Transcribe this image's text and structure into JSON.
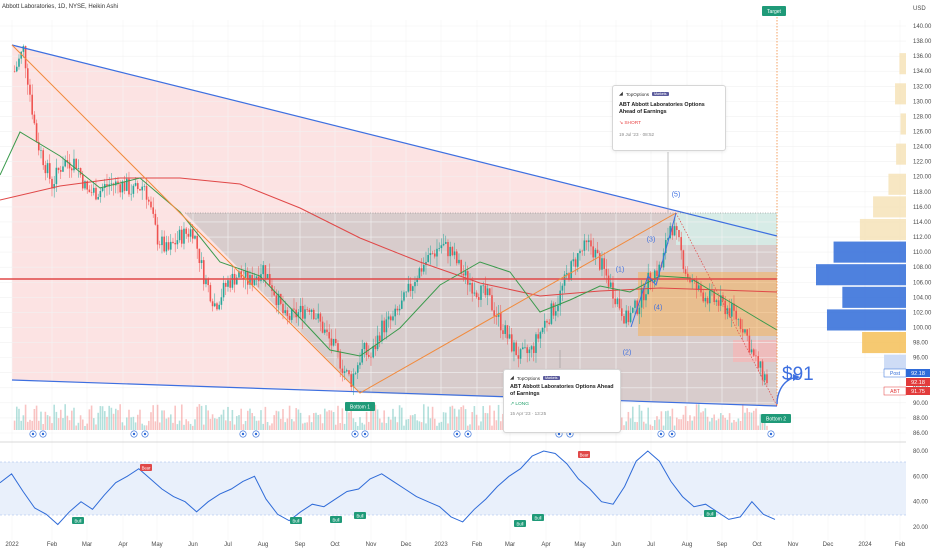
{
  "header": {
    "title": "Abbott Laboratories, 1D, NYSE, Heikin Ashi",
    "currency": "USD"
  },
  "chart_data": [
    {
      "type": "candlestick",
      "title": "Abbott Laboratories, 1D, NYSE, Heikin Ashi",
      "y_axis_ticks": [
        "140.00",
        "138.00",
        "136.00",
        "134.00",
        "132.00",
        "130.00",
        "128.00",
        "126.00",
        "124.00",
        "122.00",
        "120.00",
        "118.00",
        "116.00",
        "114.00",
        "112.00",
        "110.00",
        "108.00",
        "106.00",
        "104.00",
        "102.00",
        "100.00",
        "98.00",
        "96.00",
        "94.00",
        "92.00",
        "90.00",
        "88.00",
        "86.00"
      ],
      "x_axis_ticks": [
        "2022",
        "Feb",
        "Mar",
        "Apr",
        "May",
        "Jun",
        "Jul",
        "Aug",
        "Sep",
        "Oct",
        "Nov",
        "Dec",
        "2023",
        "Feb",
        "Mar",
        "Apr",
        "May",
        "Jun",
        "Jul",
        "Aug",
        "Sep",
        "Oct",
        "Nov",
        "Dec",
        "2024",
        "Feb"
      ],
      "ylim": [
        85,
        142
      ],
      "close_series": [
        {
          "date": "2022-01-03",
          "close": 134
        },
        {
          "date": "2022-01-10",
          "close": 137
        },
        {
          "date": "2022-01-20",
          "close": 125
        },
        {
          "date": "2022-02-01",
          "close": 119
        },
        {
          "date": "2022-02-10",
          "close": 122
        },
        {
          "date": "2022-02-20",
          "close": 122
        },
        {
          "date": "2022-03-01",
          "close": 118
        },
        {
          "date": "2022-03-10",
          "close": 118
        },
        {
          "date": "2022-03-20",
          "close": 119
        },
        {
          "date": "2022-04-01",
          "close": 119
        },
        {
          "date": "2022-04-10",
          "close": 118
        },
        {
          "date": "2022-04-20",
          "close": 119
        },
        {
          "date": "2022-05-01",
          "close": 112
        },
        {
          "date": "2022-05-10",
          "close": 110
        },
        {
          "date": "2022-05-20",
          "close": 112
        },
        {
          "date": "2022-06-01",
          "close": 113
        },
        {
          "date": "2022-06-10",
          "close": 107
        },
        {
          "date": "2022-06-20",
          "close": 103
        },
        {
          "date": "2022-07-01",
          "close": 106
        },
        {
          "date": "2022-07-10",
          "close": 107
        },
        {
          "date": "2022-07-20",
          "close": 106
        },
        {
          "date": "2022-08-01",
          "close": 108
        },
        {
          "date": "2022-08-10",
          "close": 105
        },
        {
          "date": "2022-08-20",
          "close": 101
        },
        {
          "date": "2022-09-01",
          "close": 102
        },
        {
          "date": "2022-09-10",
          "close": 103
        },
        {
          "date": "2022-09-20",
          "close": 100
        },
        {
          "date": "2022-10-01",
          "close": 97
        },
        {
          "date": "2022-10-10",
          "close": 94
        },
        {
          "date": "2022-10-15",
          "close": 93
        },
        {
          "date": "2022-10-25",
          "close": 97
        },
        {
          "date": "2022-11-01",
          "close": 96
        },
        {
          "date": "2022-11-10",
          "close": 100
        },
        {
          "date": "2022-11-20",
          "close": 101
        },
        {
          "date": "2022-12-01",
          "close": 104
        },
        {
          "date": "2022-12-10",
          "close": 107
        },
        {
          "date": "2022-12-20",
          "close": 109
        },
        {
          "date": "2023-01-01",
          "close": 111
        },
        {
          "date": "2023-01-10",
          "close": 110
        },
        {
          "date": "2023-01-20",
          "close": 107
        },
        {
          "date": "2023-02-01",
          "close": 105
        },
        {
          "date": "2023-02-10",
          "close": 104
        },
        {
          "date": "2023-02-20",
          "close": 101
        },
        {
          "date": "2023-03-01",
          "close": 98
        },
        {
          "date": "2023-03-10",
          "close": 96
        },
        {
          "date": "2023-03-20",
          "close": 97
        },
        {
          "date": "2023-04-01",
          "close": 101
        },
        {
          "date": "2023-04-10",
          "close": 103
        },
        {
          "date": "2023-04-20",
          "close": 107
        },
        {
          "date": "2023-05-01",
          "close": 110
        },
        {
          "date": "2023-05-10",
          "close": 111
        },
        {
          "date": "2023-05-20",
          "close": 108
        },
        {
          "date": "2023-06-01",
          "close": 104
        },
        {
          "date": "2023-06-10",
          "close": 101
        },
        {
          "date": "2023-06-20",
          "close": 103
        },
        {
          "date": "2023-07-01",
          "close": 107
        },
        {
          "date": "2023-07-10",
          "close": 108
        },
        {
          "date": "2023-07-18",
          "close": 114
        },
        {
          "date": "2023-07-25",
          "close": 111
        },
        {
          "date": "2023-08-01",
          "close": 107
        },
        {
          "date": "2023-08-10",
          "close": 105
        },
        {
          "date": "2023-08-20",
          "close": 104
        },
        {
          "date": "2023-09-01",
          "close": 103
        },
        {
          "date": "2023-09-10",
          "close": 102
        },
        {
          "date": "2023-09-20",
          "close": 100
        },
        {
          "date": "2023-09-28",
          "close": 96
        },
        {
          "date": "2023-10-05",
          "close": 94
        },
        {
          "date": "2023-10-10",
          "close": 93
        }
      ],
      "wave_labels": [
        {
          "label": "(1)",
          "value": 107
        },
        {
          "label": "(2)",
          "value": 96
        },
        {
          "label": "(3)",
          "value": 111
        },
        {
          "label": "(4)",
          "value": 102
        },
        {
          "label": "(5)",
          "value": 117
        }
      ],
      "annotations": {
        "target": "Target",
        "bottom_1": "Bottom 1",
        "bottom_2": "Bottom 2",
        "price_target_text": "$91"
      },
      "price_labels": [
        {
          "tag": "Post",
          "value": "92.18",
          "color": "#2f6bd8"
        },
        {
          "tag": "",
          "value": "92.18",
          "color": "#e23b3b"
        },
        {
          "tag": "ABT",
          "value": "91.75",
          "color": "#e23b3b"
        }
      ],
      "volume_profile": [
        {
          "price": 135,
          "volume": 6,
          "color": "#f6e3b9"
        },
        {
          "price": 131,
          "volume": 10,
          "color": "#f6e3b9"
        },
        {
          "price": 127,
          "volume": 5,
          "color": "#f6e3b9"
        },
        {
          "price": 123,
          "volume": 9,
          "color": "#f6e3b9"
        },
        {
          "price": 119,
          "volume": 16,
          "color": "#f6e3b9"
        },
        {
          "price": 116,
          "volume": 30,
          "color": "#f6e3b9"
        },
        {
          "price": 113,
          "volume": 42,
          "color": "#f6e3b9"
        },
        {
          "price": 110,
          "volume": 66,
          "color": "#2f6bd8"
        },
        {
          "price": 107,
          "volume": 82,
          "color": "#2f6bd8"
        },
        {
          "price": 104,
          "volume": 58,
          "color": "#2f6bd8"
        },
        {
          "price": 101,
          "volume": 72,
          "color": "#2f6bd8"
        },
        {
          "price": 98,
          "volume": 40,
          "color": "#f5c058"
        },
        {
          "price": 95,
          "volume": 20,
          "color": "#c6d6f5"
        }
      ]
    },
    {
      "type": "line",
      "name": "oscillator",
      "y_axis_ticks": [
        "80.00",
        "60.00",
        "40.00",
        "20.00"
      ],
      "ylim": [
        15,
        85
      ],
      "values": [
        55,
        62,
        48,
        35,
        30,
        22,
        32,
        40,
        34,
        45,
        55,
        60,
        66,
        58,
        50,
        44,
        40,
        32,
        40,
        46,
        50,
        56,
        60,
        42,
        30,
        25,
        32,
        38,
        36,
        42,
        48,
        50,
        58,
        62,
        56,
        50,
        44,
        40,
        36,
        28,
        24,
        34,
        42,
        52,
        60,
        66,
        76,
        80,
        78,
        70,
        58,
        50,
        40,
        38,
        52,
        72,
        80,
        72,
        56,
        44,
        36,
        38,
        32,
        26,
        28,
        40,
        30,
        26
      ],
      "signals": [
        "Bull",
        "Bear",
        "Bull",
        "Bull",
        "Bull",
        "Bull",
        "Bull",
        "Bear",
        "Bull"
      ]
    }
  ],
  "cards": [
    {
      "brand": "TopOptions",
      "badge": "Markets",
      "headline": "ABT Abbott Laboratories Options Ahead of Earnings",
      "direction": "↘ SHORT",
      "direction_color": "#e84545",
      "date": "19 Jul '23 · 08:52"
    },
    {
      "brand": "TopOptions",
      "badge": "Markets",
      "headline": "ABT Abbott Laboratories Options Ahead of Earnings",
      "direction": "↗ LONG",
      "direction_color": "#22a06b",
      "date": "15 Apr '23 · 13:25"
    }
  ],
  "colors": {
    "bull_candle": "#26a69a",
    "bear_candle": "#ef5350",
    "trendline": "#3d6fe0",
    "ma_long": "#e04848",
    "ma_short": "#3a9a4c",
    "oscillator": "#2f6bd8",
    "pink_zone": "#fbd9d9",
    "gray_zone": "#cfcfcf"
  }
}
